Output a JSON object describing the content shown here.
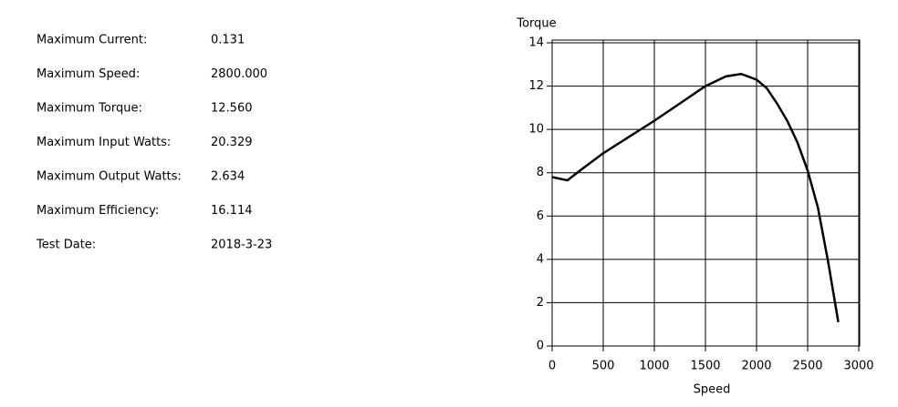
{
  "stats": [
    {
      "label": "Maximum Current:",
      "value": "0.131"
    },
    {
      "label": "Maximum Speed:",
      "value": "2800.000"
    },
    {
      "label": "Maximum Torque:",
      "value": "12.560"
    },
    {
      "label": "Maximum Input Watts:",
      "value": "20.329"
    },
    {
      "label": "Maximum Output Watts:",
      "value": "2.634"
    },
    {
      "label": "Maximum Efficiency:",
      "value": "16.114"
    },
    {
      "label": "Test Date:",
      "value": "2018-3-23"
    }
  ],
  "chart_data": {
    "type": "line",
    "y_label": "Torque",
    "x_label": "Speed",
    "x": [
      0,
      150,
      300,
      500,
      750,
      1000,
      1250,
      1500,
      1700,
      1850,
      2000,
      2100,
      2200,
      2300,
      2400,
      2500,
      2600,
      2700,
      2800
    ],
    "series": [
      {
        "color": "#000000",
        "values": [
          7.8,
          7.65,
          8.2,
          8.9,
          9.65,
          10.4,
          11.2,
          12.0,
          12.45,
          12.56,
          12.3,
          11.9,
          11.2,
          10.4,
          9.4,
          8.1,
          6.4,
          3.9,
          1.1
        ]
      }
    ],
    "xlim": [
      0,
      3000
    ],
    "xticks": [
      0,
      500,
      1000,
      1500,
      2000,
      2500,
      3000
    ],
    "ylim": [
      0,
      14
    ],
    "yticks": [
      0,
      2,
      4,
      6,
      8,
      10,
      12,
      14
    ],
    "grid": true
  }
}
